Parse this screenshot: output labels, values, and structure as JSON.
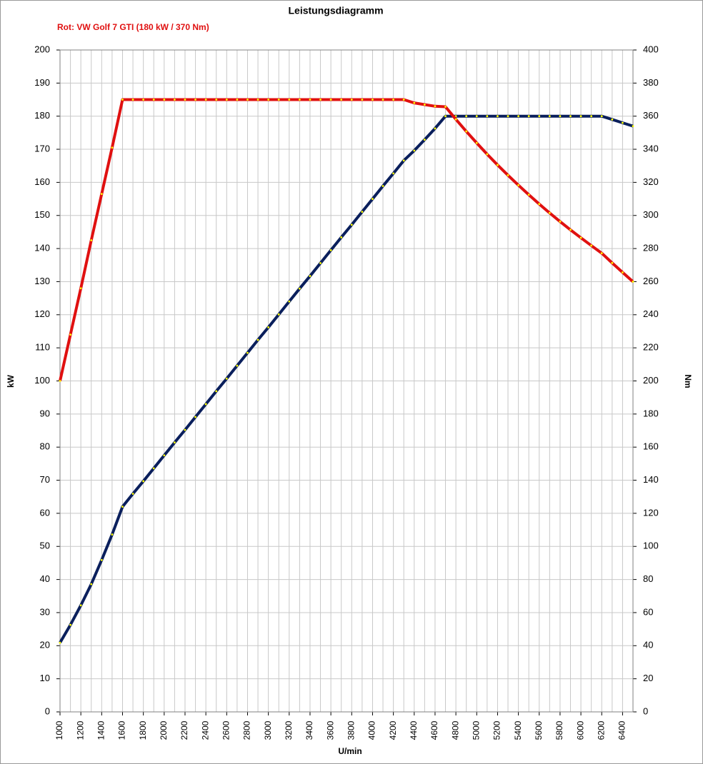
{
  "chart_data": {
    "type": "line",
    "title": "Leistungsdiagramm",
    "subtitle": "Rot: VW Golf 7 GTI (180 kW / 370 Nm)",
    "xlabel": "U/min",
    "ylabel": "kW",
    "y2label": "Nm",
    "x": [
      1000,
      1100,
      1200,
      1300,
      1400,
      1500,
      1600,
      1700,
      1800,
      1900,
      2000,
      2100,
      2200,
      2300,
      2400,
      2500,
      2600,
      2700,
      2800,
      2900,
      3000,
      3100,
      3200,
      3300,
      3400,
      3500,
      3600,
      3700,
      3800,
      3900,
      4000,
      4100,
      4200,
      4300,
      4400,
      4500,
      4600,
      4700,
      4800,
      4900,
      5000,
      5100,
      5200,
      5300,
      5400,
      5500,
      5600,
      5700,
      5800,
      5900,
      6000,
      6100,
      6200,
      6300,
      6400,
      6500
    ],
    "series": [
      {
        "name": "kW",
        "color": "#0a1f5c",
        "marker_color": "#ffff00",
        "axis": "y",
        "values": [
          20.9,
          26.3,
          32.2,
          38.6,
          45.9,
          53.6,
          62.0,
          65.9,
          69.7,
          73.6,
          77.5,
          81.4,
          85.2,
          89.1,
          93.0,
          96.9,
          100.7,
          104.6,
          108.5,
          112.4,
          116.2,
          120.1,
          124.0,
          127.9,
          131.7,
          135.6,
          139.5,
          143.4,
          147.2,
          151.1,
          155.0,
          158.9,
          162.7,
          166.6,
          169.6,
          172.9,
          176.3,
          180,
          180,
          180,
          180,
          180,
          180,
          180,
          180,
          180,
          180,
          180,
          180,
          180,
          180,
          180,
          180,
          179,
          178,
          177
        ]
      },
      {
        "name": "Nm",
        "color": "#e01010",
        "marker_color": "#ffff00",
        "axis": "y2",
        "values": [
          200,
          228,
          256,
          285,
          313,
          341,
          370,
          370,
          370,
          370,
          370,
          370,
          370,
          370,
          370,
          370,
          370,
          370,
          370,
          370,
          370,
          370,
          370,
          370,
          370,
          370,
          370,
          370,
          370,
          370,
          370,
          370,
          370,
          370,
          368,
          367,
          366,
          365.7,
          358.1,
          350.8,
          343.8,
          337.0,
          330.5,
          324.3,
          318.3,
          312.5,
          306.9,
          301.5,
          296.3,
          291.3,
          286.5,
          281.8,
          277.2,
          271.3,
          265.6,
          260.0
        ]
      }
    ],
    "xlim": [
      1000,
      6500
    ],
    "xticks": [
      1000,
      1200,
      1400,
      1600,
      1800,
      2000,
      2200,
      2400,
      2600,
      2800,
      3000,
      3200,
      3400,
      3600,
      3800,
      4000,
      4200,
      4400,
      4600,
      4800,
      5000,
      5200,
      5400,
      5600,
      5800,
      6000,
      6200,
      6400
    ],
    "ylim": [
      0,
      200
    ],
    "yticks": [
      0,
      10,
      20,
      30,
      40,
      50,
      60,
      70,
      80,
      90,
      100,
      110,
      120,
      130,
      140,
      150,
      160,
      170,
      180,
      190,
      200
    ],
    "y2lim": [
      0,
      400
    ],
    "y2ticks": [
      0,
      20,
      40,
      60,
      80,
      100,
      120,
      140,
      160,
      180,
      200,
      220,
      240,
      260,
      280,
      300,
      320,
      340,
      360,
      380,
      400
    ],
    "grid": true
  }
}
